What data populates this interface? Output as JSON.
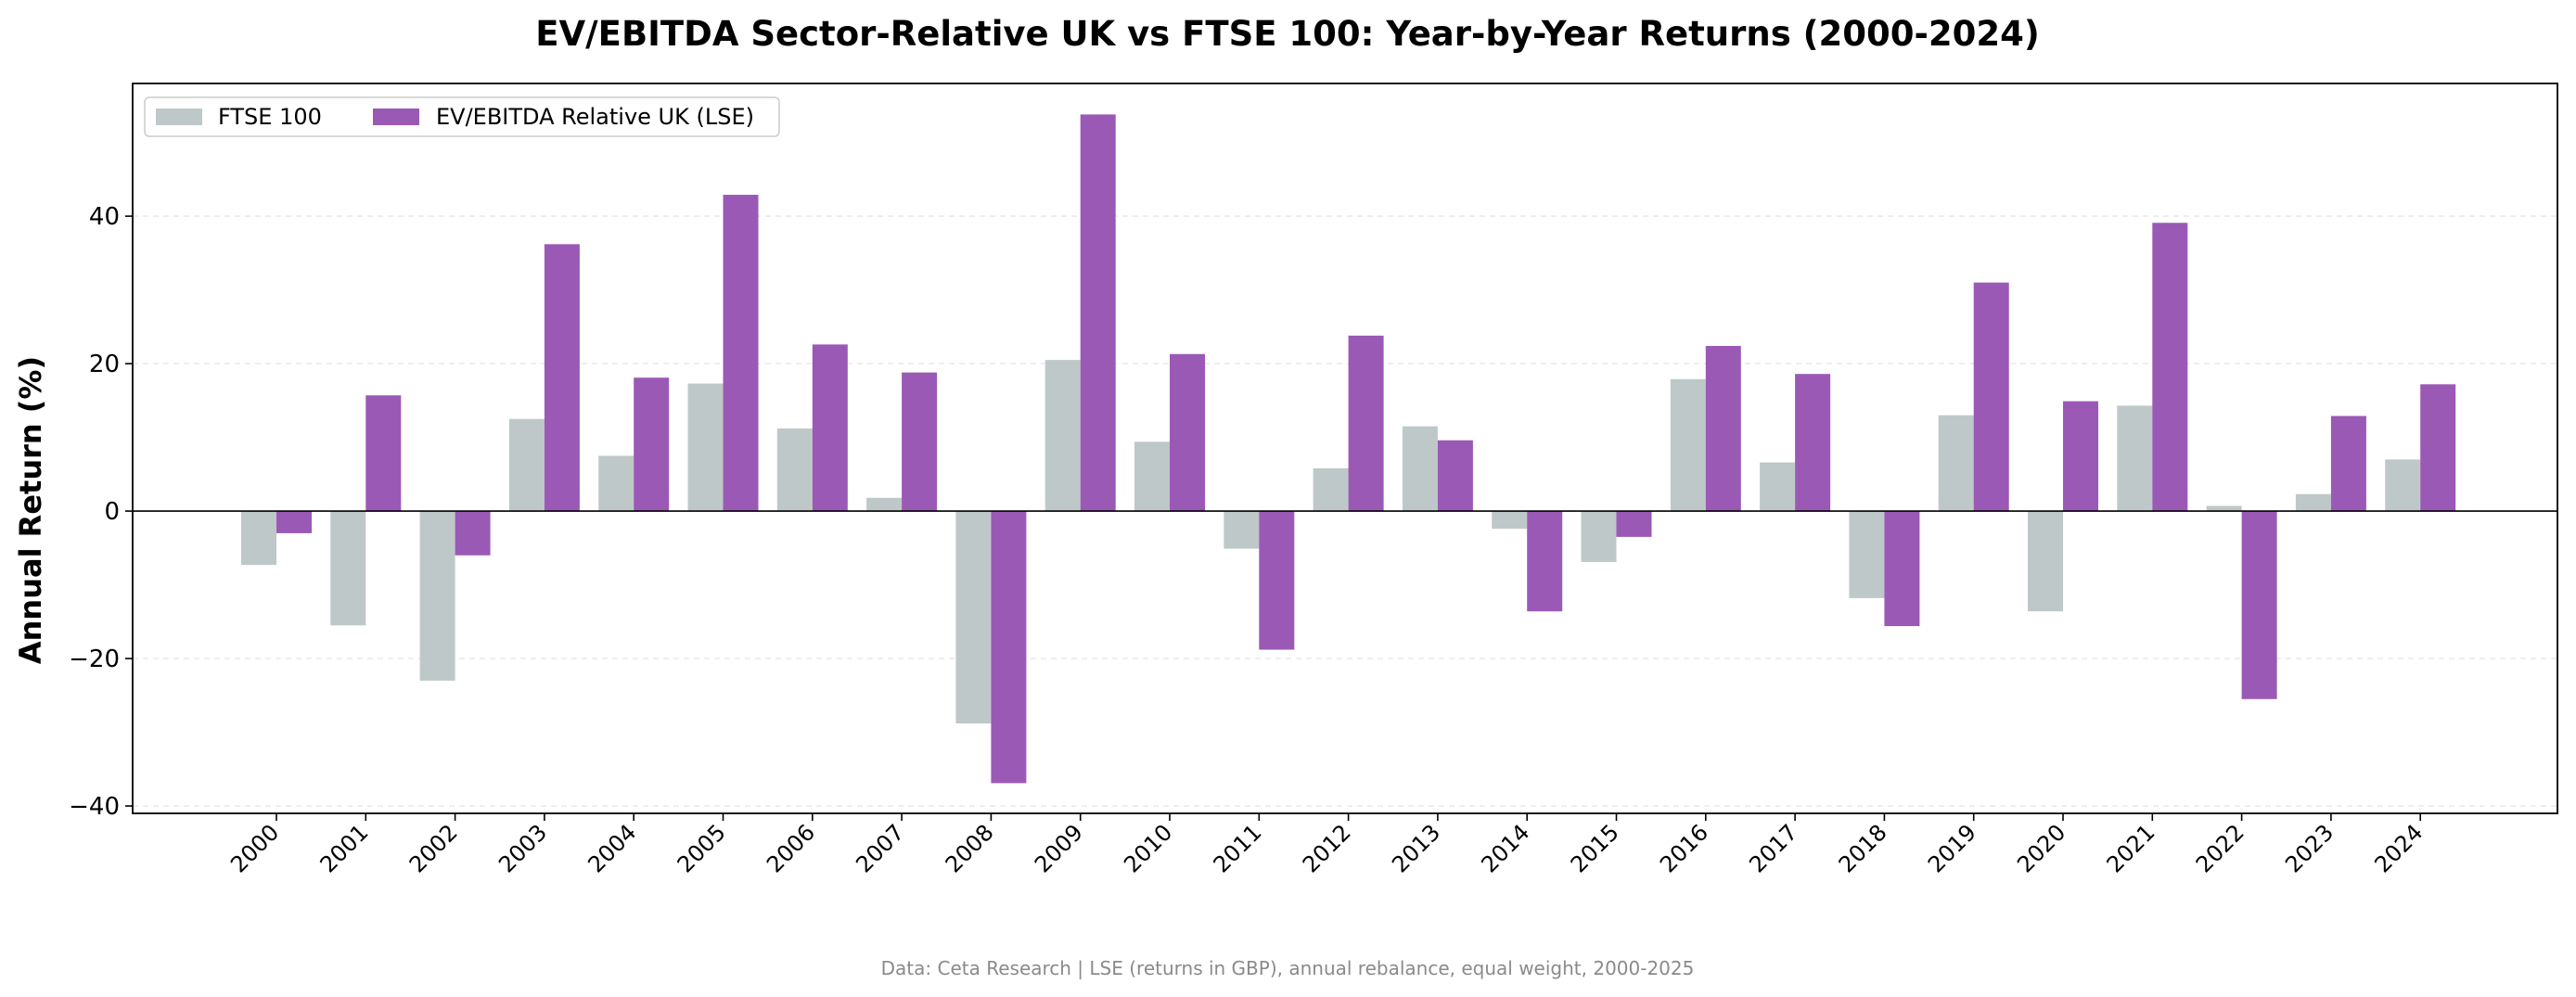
{
  "chart_data": {
    "type": "bar",
    "title": "EV/EBITDA Sector-Relative UK vs FTSE 100: Year-by-Year Returns (2000-2024)",
    "xlabel": "",
    "ylabel": "Annual Return (%)",
    "ylim": [
      -41,
      58
    ],
    "yticks": [
      -40,
      -20,
      0,
      20,
      40
    ],
    "ytick_labels": [
      "−40",
      "−20",
      "0",
      "20",
      "40"
    ],
    "grid": "horizontal dashed",
    "legend_position": "top-left",
    "categories": [
      "2000",
      "2001",
      "2002",
      "2003",
      "2004",
      "2005",
      "2006",
      "2007",
      "2008",
      "2009",
      "2010",
      "2011",
      "2012",
      "2013",
      "2014",
      "2015",
      "2016",
      "2017",
      "2018",
      "2019",
      "2020",
      "2021",
      "2022",
      "2023",
      "2024"
    ],
    "series": [
      {
        "name": "FTSE 100",
        "color": "#bfc8c8",
        "values": [
          -7.3,
          -15.5,
          -23.0,
          12.5,
          7.5,
          17.3,
          11.2,
          1.8,
          -28.8,
          20.5,
          9.4,
          -5.1,
          5.8,
          11.5,
          -2.4,
          -6.9,
          17.9,
          6.6,
          -11.8,
          13.0,
          -13.6,
          14.3,
          0.7,
          2.3,
          7.0
        ]
      },
      {
        "name": "EV/EBITDA Relative UK (LSE)",
        "color": "#9b59b6",
        "values": [
          -3.0,
          15.7,
          -6.0,
          36.2,
          18.1,
          42.9,
          22.6,
          18.8,
          -36.9,
          53.8,
          21.3,
          -18.8,
          23.8,
          9.6,
          -13.6,
          -3.5,
          22.4,
          18.6,
          -15.6,
          31.0,
          14.9,
          39.1,
          -25.5,
          12.9,
          17.2
        ]
      }
    ]
  },
  "footnote": "Data: Ceta Research | LSE (returns in GBP), annual rebalance, equal weight, 2000-2025"
}
